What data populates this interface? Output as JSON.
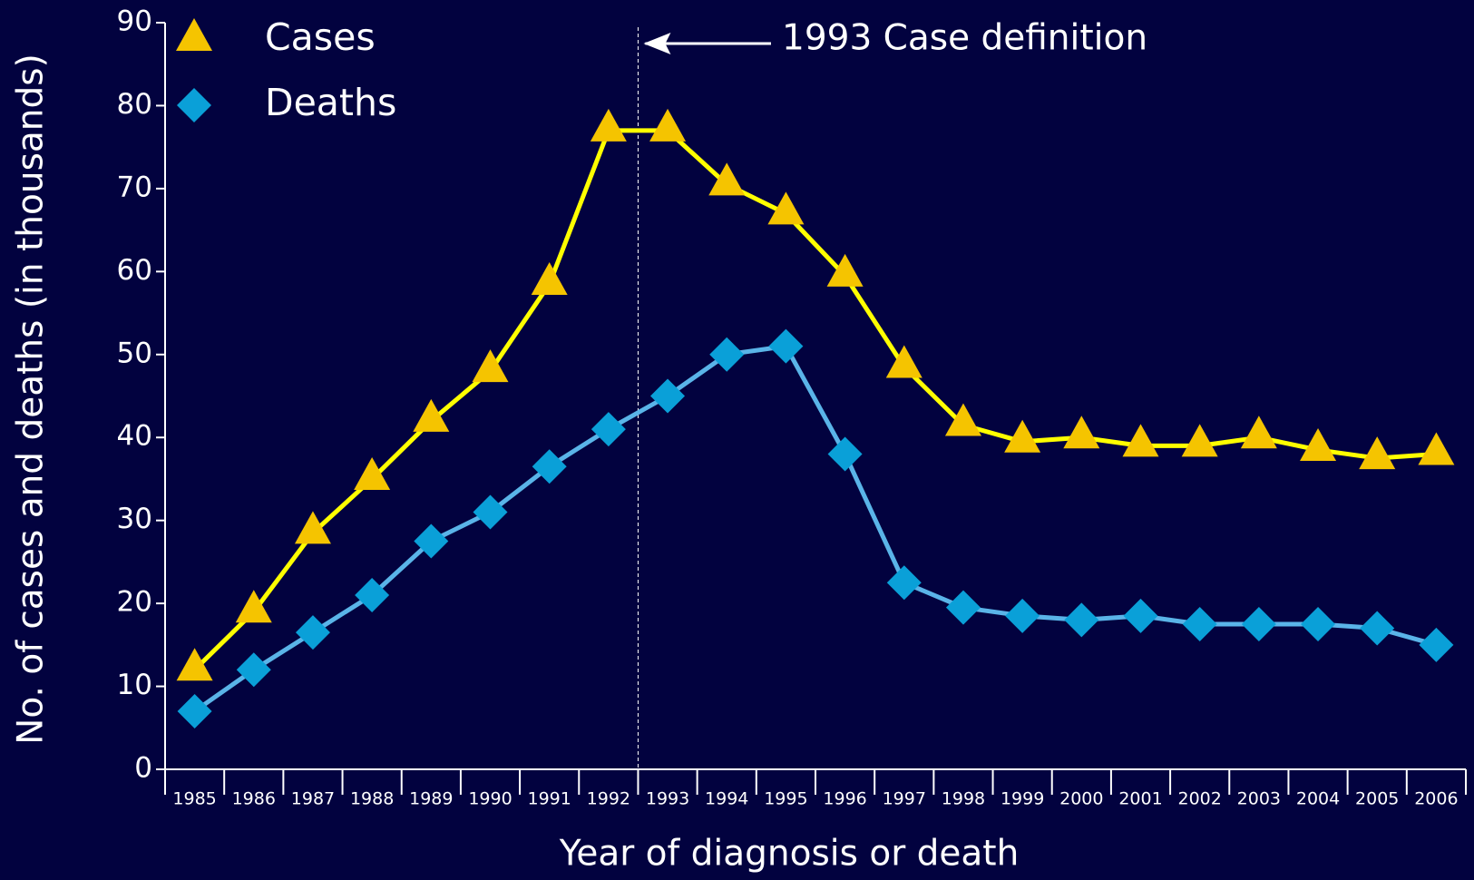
{
  "chart_data": {
    "type": "line",
    "xlabel": "Year of diagnosis or death",
    "ylabel": "No. of cases and deaths (in thousands)",
    "annotation": "1993 Case definition",
    "categories": [
      "1985",
      "1986",
      "1987",
      "1988",
      "1989",
      "1990",
      "1991",
      "1992",
      "1993",
      "1994",
      "1995",
      "1996",
      "1997",
      "1998",
      "1999",
      "2000",
      "2001",
      "2002",
      "2003",
      "2004",
      "2005",
      "2006"
    ],
    "series": [
      {
        "name": "Cases",
        "color": "#ffff00",
        "marker_color": "#f5c400",
        "marker": "triangle",
        "values": [
          12,
          19,
          28.5,
          35,
          42,
          48,
          58.5,
          77,
          77,
          70.5,
          67,
          59.5,
          48.5,
          41.5,
          39.5,
          40,
          39,
          39,
          40,
          38.5,
          37.5,
          38
        ]
      },
      {
        "name": "Deaths",
        "color": "#5ab4e8",
        "marker_color": "#0aa0d8",
        "marker": "diamond",
        "values": [
          7,
          12,
          16.5,
          21,
          27.5,
          31,
          36.5,
          41,
          45,
          50,
          51,
          38,
          22.5,
          19.5,
          18.5,
          18,
          18.5,
          17.5,
          17.5,
          17.5,
          17,
          15
        ]
      }
    ],
    "ylim": [
      0,
      90
    ],
    "yticks": [
      0,
      10,
      20,
      30,
      40,
      50,
      60,
      70,
      80,
      90
    ],
    "grid": false,
    "legend": "upper left"
  }
}
